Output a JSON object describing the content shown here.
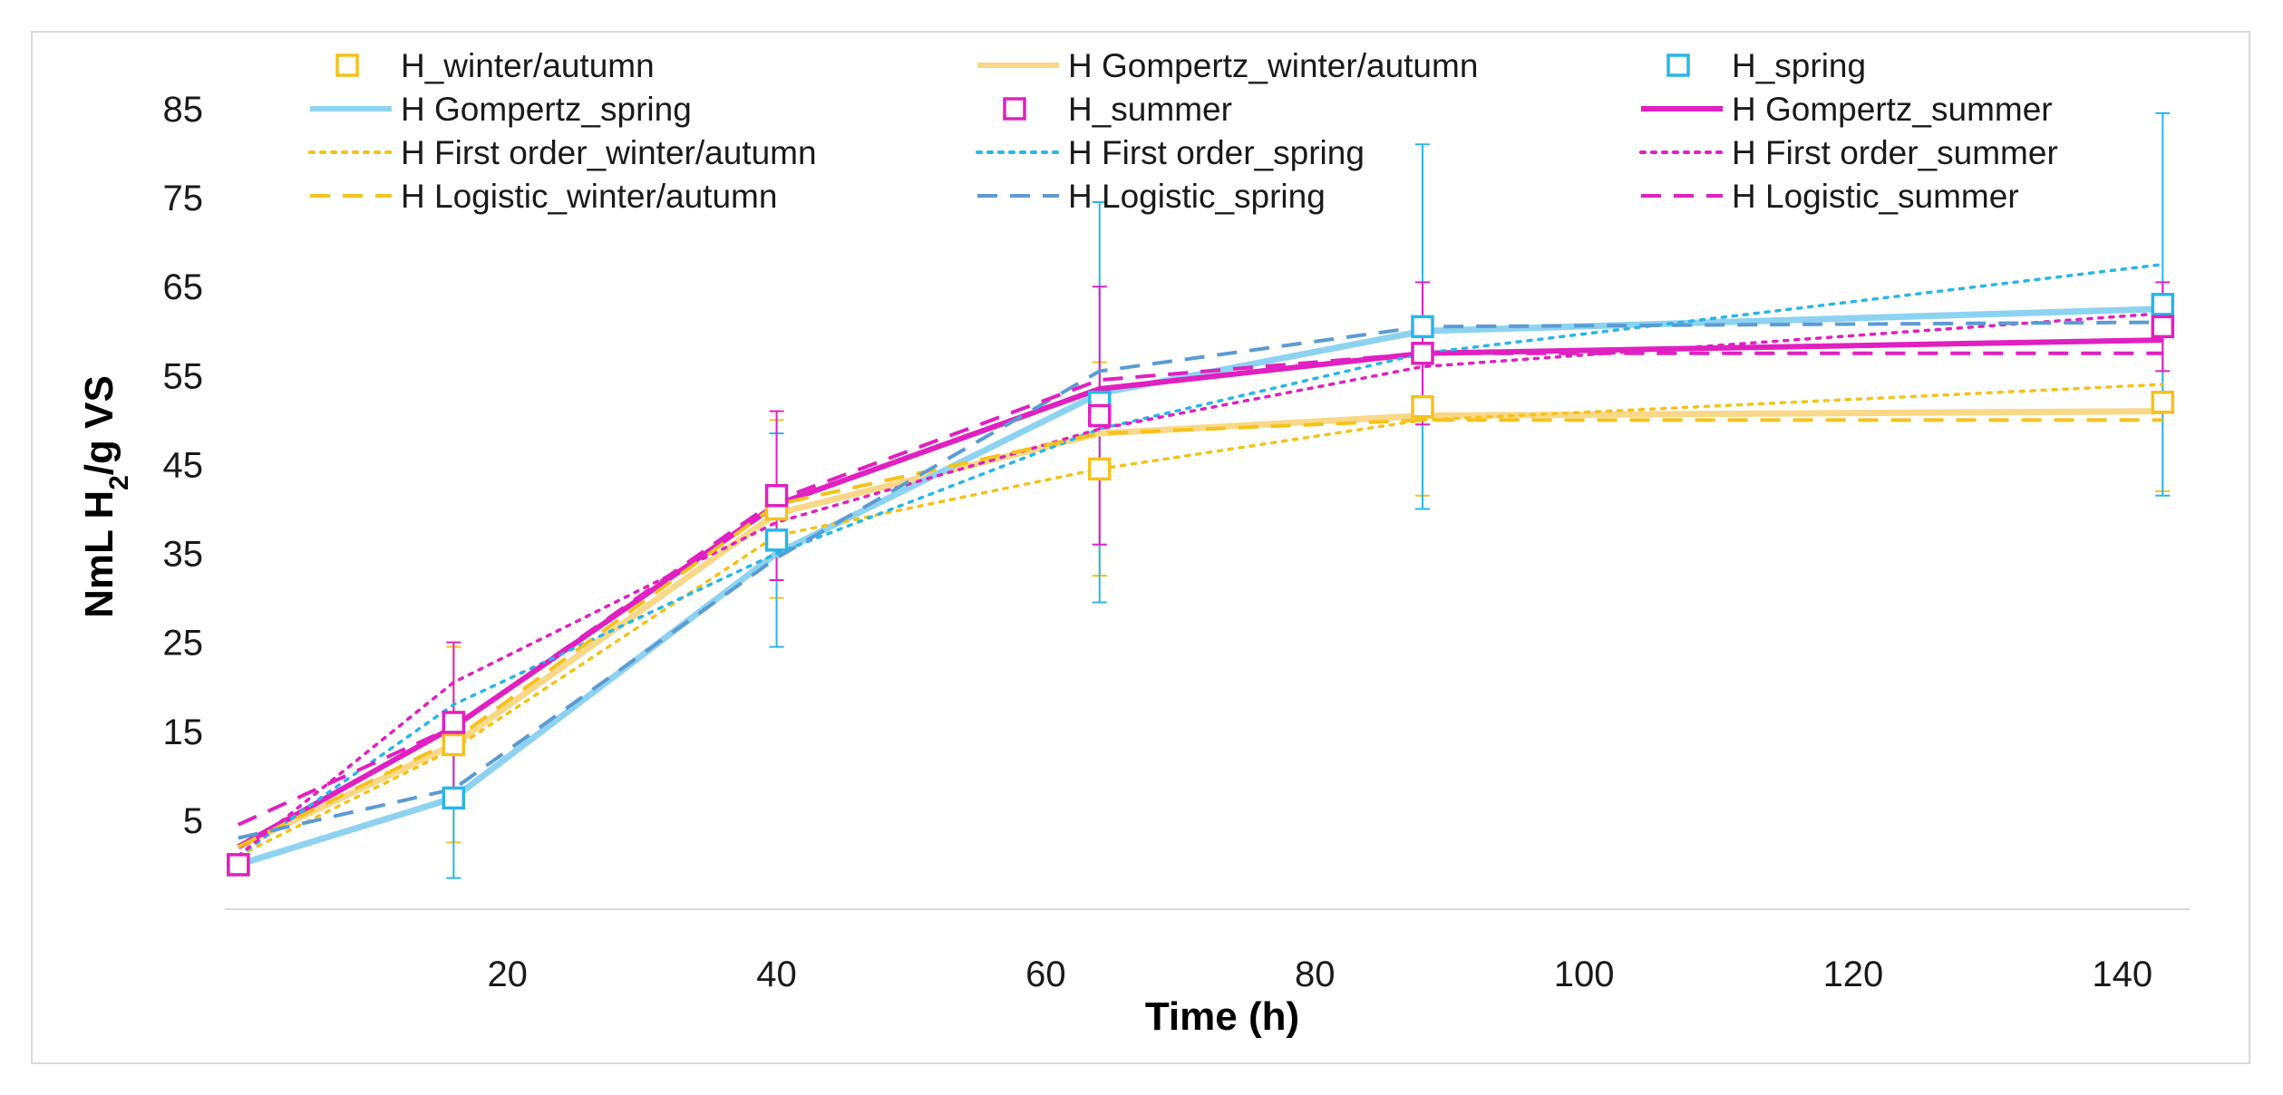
{
  "chart_data": {
    "type": "line",
    "title": "",
    "xlabel": "Time (h)",
    "ylabel_prefix": "NmL H",
    "ylabel_sub": "2",
    "ylabel_suffix": "/g VS",
    "xlim": [
      -1,
      145
    ],
    "ylim": [
      -5,
      85
    ],
    "xticks": [
      20,
      40,
      60,
      80,
      100,
      120,
      140
    ],
    "yticks": [
      5,
      15,
      25,
      35,
      45,
      55,
      65,
      75,
      85
    ],
    "gridlines": false,
    "colors": {
      "winter": "#f5c21b",
      "winter_light": "#fad889",
      "spring": "#29b6e8",
      "spring_light": "#8dd3f1",
      "logistic_spring": "#5b9bd5",
      "summer": "#e020c0"
    },
    "observed": [
      {
        "name": "H_winter/autumn",
        "color": "#f5c21b",
        "x": [
          0,
          16,
          40,
          64,
          88,
          143
        ],
        "y": [
          0,
          13.5,
          40,
          44.5,
          51.5,
          52
        ],
        "err": [
          0,
          11,
          10,
          12,
          10,
          10
        ]
      },
      {
        "name": "H_spring",
        "color": "#29b6e8",
        "x": [
          0,
          16,
          40,
          64,
          88,
          143
        ],
        "y": [
          0,
          7.5,
          36.5,
          52,
          60.5,
          63
        ],
        "err": [
          0,
          9,
          12,
          22.5,
          20.5,
          21.5
        ]
      },
      {
        "name": "H_summer",
        "color": "#e020c0",
        "x": [
          0,
          16,
          40,
          64,
          88,
          143
        ],
        "y": [
          0,
          16,
          41.5,
          50.5,
          57.5,
          60.5
        ],
        "err": [
          0,
          9,
          9.5,
          14.5,
          8,
          5
        ]
      }
    ],
    "models": [
      {
        "name": "H Gompertz_winter/autumn",
        "color": "#fad889",
        "style": "solid",
        "width": 7,
        "x": [
          0,
          16,
          40,
          64,
          88,
          143
        ],
        "y": [
          2,
          13.5,
          39.5,
          48.5,
          50.5,
          51
        ]
      },
      {
        "name": "H Gompertz_spring",
        "color": "#8dd3f1",
        "style": "solid",
        "width": 7,
        "x": [
          0,
          16,
          40,
          64,
          88,
          143
        ],
        "y": [
          0,
          7.5,
          35,
          53,
          60,
          62.5
        ]
      },
      {
        "name": "H Gompertz_summer",
        "color": "#e020c0",
        "style": "solid",
        "width": 6,
        "x": [
          0,
          16,
          40,
          64,
          88,
          143
        ],
        "y": [
          2,
          15.5,
          40.5,
          53.5,
          57.5,
          59
        ]
      },
      {
        "name": "H First order_winter/autumn",
        "color": "#f5c21b",
        "style": "dotted",
        "width": 3.5,
        "x": [
          0,
          16,
          40,
          64,
          88,
          143
        ],
        "y": [
          1,
          13,
          37,
          44.5,
          50,
          54
        ]
      },
      {
        "name": "H First order_spring",
        "color": "#29b6e8",
        "style": "dotted",
        "width": 3.5,
        "x": [
          0,
          16,
          40,
          64,
          88,
          143
        ],
        "y": [
          1,
          18,
          35,
          49,
          57.5,
          67.5
        ]
      },
      {
        "name": "H First order_summer",
        "color": "#e020c0",
        "style": "dotted",
        "width": 3.5,
        "x": [
          0,
          16,
          40,
          64,
          88,
          143
        ],
        "y": [
          1,
          20.5,
          38.5,
          49,
          56,
          62
        ]
      },
      {
        "name": "H Logistic_winter/autumn",
        "color": "#f5c21b",
        "style": "dashed",
        "width": 4,
        "x": [
          0,
          16,
          40,
          64,
          88,
          143
        ],
        "y": [
          2,
          14,
          40.5,
          48.5,
          50,
          50
        ]
      },
      {
        "name": "H Logistic_spring",
        "color": "#5b9bd5",
        "style": "dashed",
        "width": 4,
        "x": [
          0,
          16,
          40,
          64,
          88,
          143
        ],
        "y": [
          3,
          8.5,
          34.5,
          55.5,
          60.5,
          61
        ]
      },
      {
        "name": "H Logistic_summer",
        "color": "#e020c0",
        "style": "dashed",
        "width": 4,
        "x": [
          0,
          16,
          40,
          64,
          88,
          143
        ],
        "y": [
          4.5,
          15.5,
          41,
          54.5,
          57.5,
          57.5
        ]
      }
    ],
    "legend": {
      "placement": "top",
      "entries": [
        {
          "label": "H_winter/autumn",
          "kind": "marker",
          "color": "#f5c21b"
        },
        {
          "label": "H Gompertz_winter/autumn",
          "kind": "solid",
          "color": "#fad889"
        },
        {
          "label": "H_spring",
          "kind": "marker",
          "color": "#29b6e8"
        },
        {
          "label": "H Gompertz_spring",
          "kind": "solid",
          "color": "#8dd3f1"
        },
        {
          "label": "H_summer",
          "kind": "marker",
          "color": "#e020c0"
        },
        {
          "label": "H Gompertz_summer",
          "kind": "solid",
          "color": "#e020c0"
        },
        {
          "label": "H First order_winter/autumn",
          "kind": "dotted",
          "color": "#f5c21b"
        },
        {
          "label": "H First order_spring",
          "kind": "dotted",
          "color": "#29b6e8"
        },
        {
          "label": "H First order_summer",
          "kind": "dotted",
          "color": "#e020c0"
        },
        {
          "label": "H Logistic_winter/autumn",
          "kind": "dashed",
          "color": "#f5c21b"
        },
        {
          "label": "H Logistic_spring",
          "kind": "dashed",
          "color": "#5b9bd5"
        },
        {
          "label": "H Logistic_summer",
          "kind": "dashed",
          "color": "#e020c0"
        }
      ]
    }
  }
}
